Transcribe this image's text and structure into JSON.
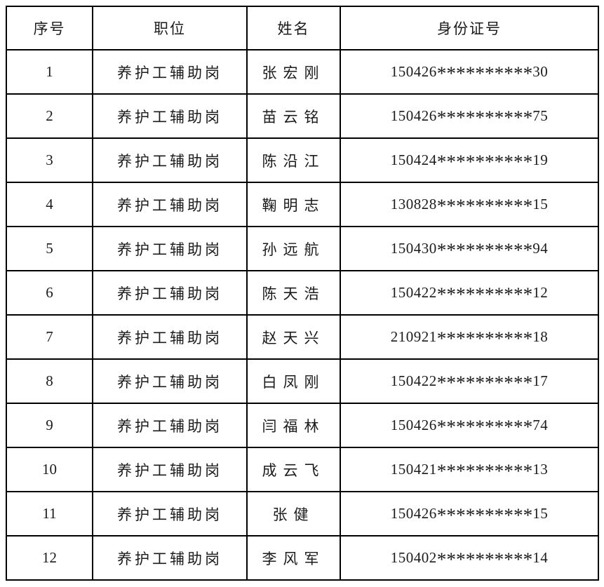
{
  "colors": {
    "background": "#ffffff",
    "border": "#000000",
    "text": "#1b1b1b"
  },
  "table": {
    "headers": {
      "serial": "序号",
      "position": "职位",
      "name": "姓名",
      "id": "身份证号"
    },
    "rows": [
      {
        "no": "1",
        "position": "养护工辅助岗",
        "name": "张宏刚",
        "id": "150426**********30"
      },
      {
        "no": "2",
        "position": "养护工辅助岗",
        "name": "苗云铭",
        "id": "150426**********75"
      },
      {
        "no": "3",
        "position": "养护工辅助岗",
        "name": "陈沿江",
        "id": "150424**********19"
      },
      {
        "no": "4",
        "position": "养护工辅助岗",
        "name": "鞠明志",
        "id": "130828**********15"
      },
      {
        "no": "5",
        "position": "养护工辅助岗",
        "name": "孙远航",
        "id": "150430**********94"
      },
      {
        "no": "6",
        "position": "养护工辅助岗",
        "name": "陈天浩",
        "id": "150422**********12"
      },
      {
        "no": "7",
        "position": "养护工辅助岗",
        "name": "赵天兴",
        "id": "210921**********18"
      },
      {
        "no": "8",
        "position": "养护工辅助岗",
        "name": "白凤刚",
        "id": "150422**********17"
      },
      {
        "no": "9",
        "position": "养护工辅助岗",
        "name": "闫福林",
        "id": "150426**********74"
      },
      {
        "no": "10",
        "position": "养护工辅助岗",
        "name": "成云飞",
        "id": "150421**********13"
      },
      {
        "no": "11",
        "position": "养护工辅助岗",
        "name": "张健",
        "id": "150426**********15"
      },
      {
        "no": "12",
        "position": "养护工辅助岗",
        "name": "李风军",
        "id": "150402**********14"
      }
    ]
  }
}
